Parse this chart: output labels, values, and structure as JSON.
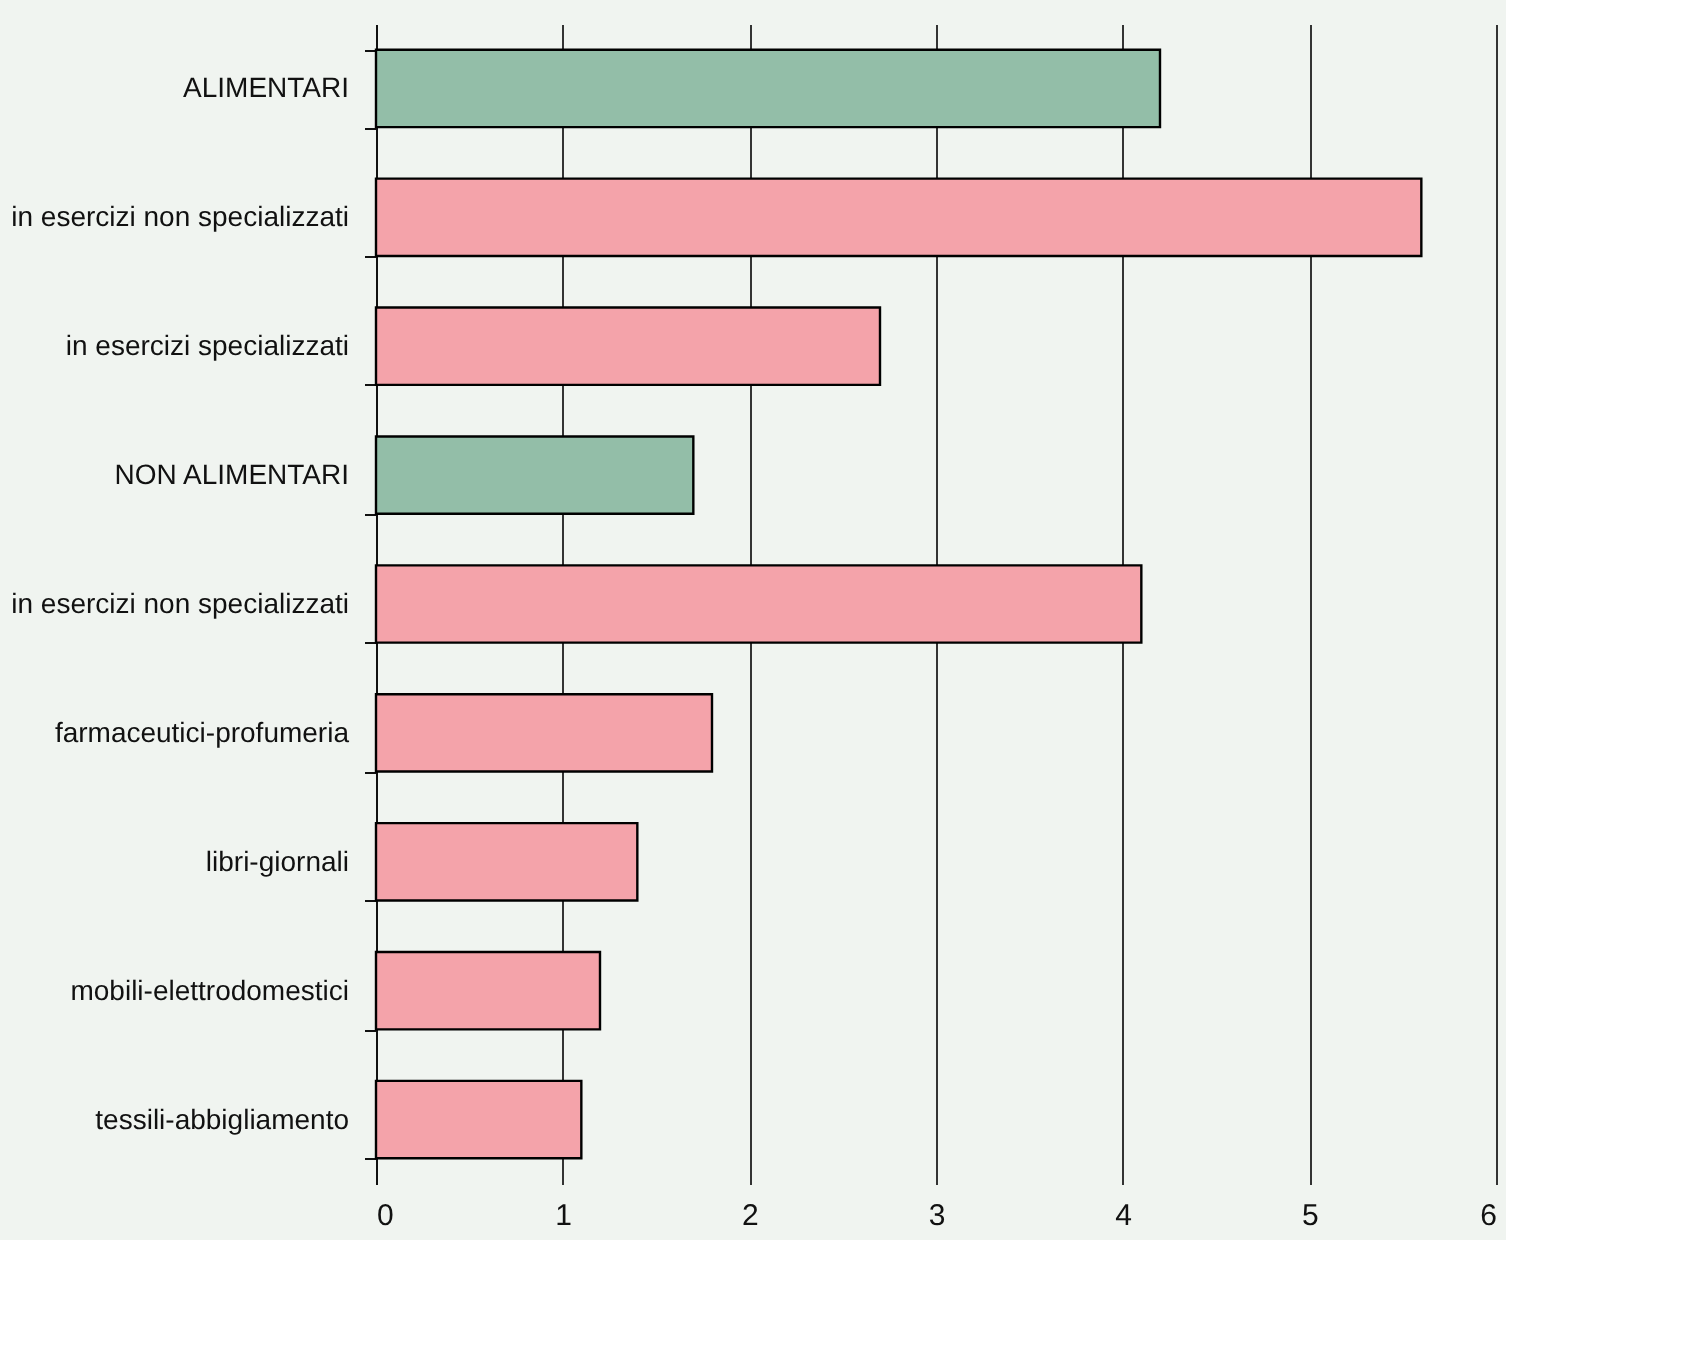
{
  "chart_data": {
    "type": "bar",
    "orientation": "horizontal",
    "categories": [
      "ALIMENTARI",
      "in esercizi non specializzati",
      "in esercizi specializzati",
      "NON ALIMENTARI",
      "in esercizi non specializzati",
      "farmaceutici-profumeria",
      "libri-giornali",
      "mobili-elettrodomestici",
      "tessili-abbigliamento"
    ],
    "values": [
      4.2,
      5.6,
      2.7,
      1.7,
      4.1,
      1.8,
      1.4,
      1.2,
      1.1
    ],
    "colors": [
      "#93bea8",
      "#f4a3aa",
      "#f4a3aa",
      "#93bea8",
      "#f4a3aa",
      "#f4a3aa",
      "#f4a3aa",
      "#f4a3aa",
      "#f4a3aa"
    ],
    "xlim": [
      0,
      6
    ],
    "xticks": [
      0,
      1,
      2,
      3,
      4,
      5,
      6
    ],
    "grid": "x"
  }
}
